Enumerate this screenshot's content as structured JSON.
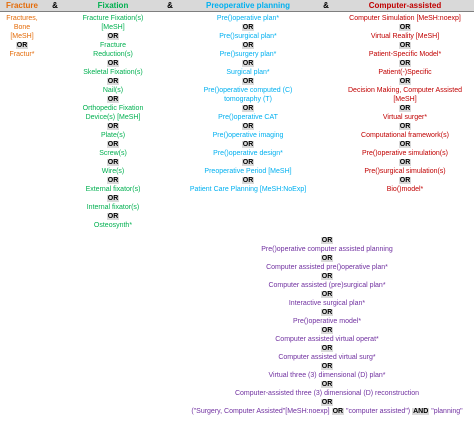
{
  "headers": {
    "fracture": "Fracture",
    "and": "&",
    "fixation": "Fixation",
    "preop": "Preoperative planning",
    "computer": "Computer-assisted"
  },
  "ops": {
    "or": "OR",
    "and": "AND"
  },
  "fracture": [
    "Fractures, Bone",
    "[MeSH]",
    "Fractur*"
  ],
  "fixation": [
    "Fracture Fixation(s)",
    "[MeSH]",
    "Fracture",
    "Reduction(s)",
    "Skeletal Fixation(s)",
    "Nail(s)",
    "Orthopedic Fixation",
    "Device(s) [MeSH]",
    "Plate(s)",
    "Screw(s)",
    "Wire(s)",
    "External fixator(s)",
    "Internal fixator(s)",
    "Osteosynth*"
  ],
  "preop": [
    "Pre()operative plan*",
    "Pre()surgical plan*",
    "Pre()surgery plan*",
    "Surgical plan*",
    "Pre()operative computed (C)",
    "tomography (T)",
    "Pre()operative CAT",
    "Pre()operative imaging",
    "Pre()operative design*",
    "Preoperative Period [MeSH]",
    "Patient Care Planning [MeSH:NoExp]"
  ],
  "computer": [
    "Computer Simulation [MeSH:noexp]",
    "Virtual Reality [MeSH]",
    "Patient-Specific Model*",
    "Patient(-)Specific",
    "Decision Making, Computer Assisted",
    "[MeSH]",
    "Virtual surger*",
    "Computational framework(s)",
    "Pre()operative simulation(s)",
    "Pre()surgical simulation(s)",
    "Bio()model*"
  ],
  "combined": [
    "Pre()operative computer assisted planning",
    "Computer assisted pre()operative plan*",
    "Computer assisted (pre)surgical plan*",
    "Interactive surgical plan*",
    "Pre()operative model*",
    "Computer assisted virtual operat*",
    "Computer assisted virtual surg*",
    "Virtual three (3) dimensional (D)  plan*",
    "Computer-assisted three (3) dimensional (D) reconstruction"
  ],
  "final": {
    "part1": "(\"Surgery, Computer Assisted\"[MeSH:noexp]",
    "part2": "\"computer assisted\")",
    "part3": "\"planning\""
  }
}
